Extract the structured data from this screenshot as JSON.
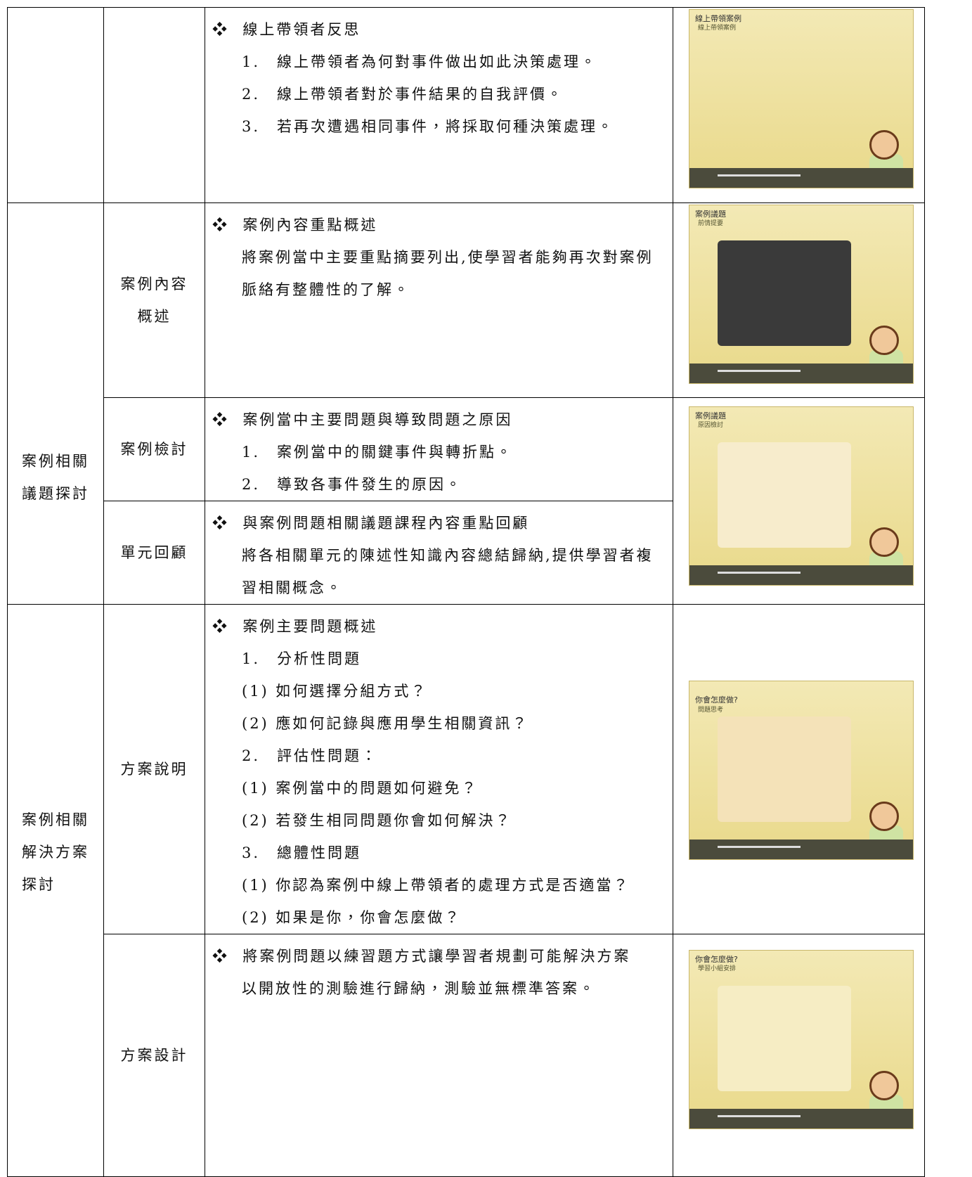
{
  "groups": [
    {
      "label": "案例相關議題探討"
    },
    {
      "label": "案例相關解決方案探討"
    }
  ],
  "rows": [
    {
      "content": {
        "heading": "線上帶領者反思",
        "items": [
          {
            "num": "1.",
            "text": "線上帶領者為何對事件做出如此決策處理。"
          },
          {
            "num": "2.",
            "text": "線上帶領者對於事件結果的自我評價。"
          },
          {
            "num": "3.",
            "text": "若再次遭遇相同事件，將採取何種決策處理。"
          }
        ]
      },
      "thumbnail": {
        "title": "線上帶領案例",
        "subtitle": "線上帶領案例"
      }
    },
    {
      "section": "案例內容概述",
      "content": {
        "heading": "案例內容重點概述",
        "paragraph": "將案例當中主要重點摘要列出,使學習者能夠再次對案例脈絡有整體性的了解。"
      },
      "thumbnail": {
        "title": "案例議題",
        "subtitle": "前情提要"
      }
    },
    {
      "section": "案例檢討",
      "content": {
        "heading": "案例當中主要問題與導致問題之原因",
        "items": [
          {
            "num": "1.",
            "text": "案例當中的關鍵事件與轉折點。"
          },
          {
            "num": "2.",
            "text": "導致各事件發生的原因。"
          }
        ]
      },
      "thumbnail": {
        "title": "案例議題",
        "subtitle": "原因檢討"
      }
    },
    {
      "section": "單元回顧",
      "content": {
        "heading": "與案例問題相關議題課程內容重點回顧",
        "paragraph": "將各相關單元的陳述性知識內容總結歸納,提供學習者複習相關概念。"
      }
    },
    {
      "section": "方案說明",
      "content": {
        "heading": "案例主要問題概述",
        "items": [
          {
            "num": "1.",
            "text": "分析性問題"
          },
          {
            "sub": "(1) 如何選擇分組方式？"
          },
          {
            "sub": "(2) 應如何記錄與應用學生相關資訊？"
          },
          {
            "num": "2.",
            "text": "評估性問題："
          },
          {
            "sub": "(1) 案例當中的問題如何避免？"
          },
          {
            "sub": "(2) 若發生相同問題你會如何解決？"
          },
          {
            "num": "3.",
            "text": "總體性問題"
          },
          {
            "sub": "(1) 你認為案例中線上帶領者的處理方式是否適當？"
          },
          {
            "sub": "(2) 如果是你，你會怎麼做？"
          }
        ]
      },
      "thumbnail": {
        "title": "你會怎麼做?",
        "subtitle": "問題思考"
      }
    },
    {
      "section": "方案設計",
      "content": {
        "heading": "將案例問題以練習題方式讓學習者規劃可能解決方案",
        "paragraph": "以開放性的測驗進行歸納，測驗並無標準答案。"
      },
      "thumbnail": {
        "title": "你會怎麼做?",
        "subtitle": "學習小組安排"
      }
    }
  ]
}
